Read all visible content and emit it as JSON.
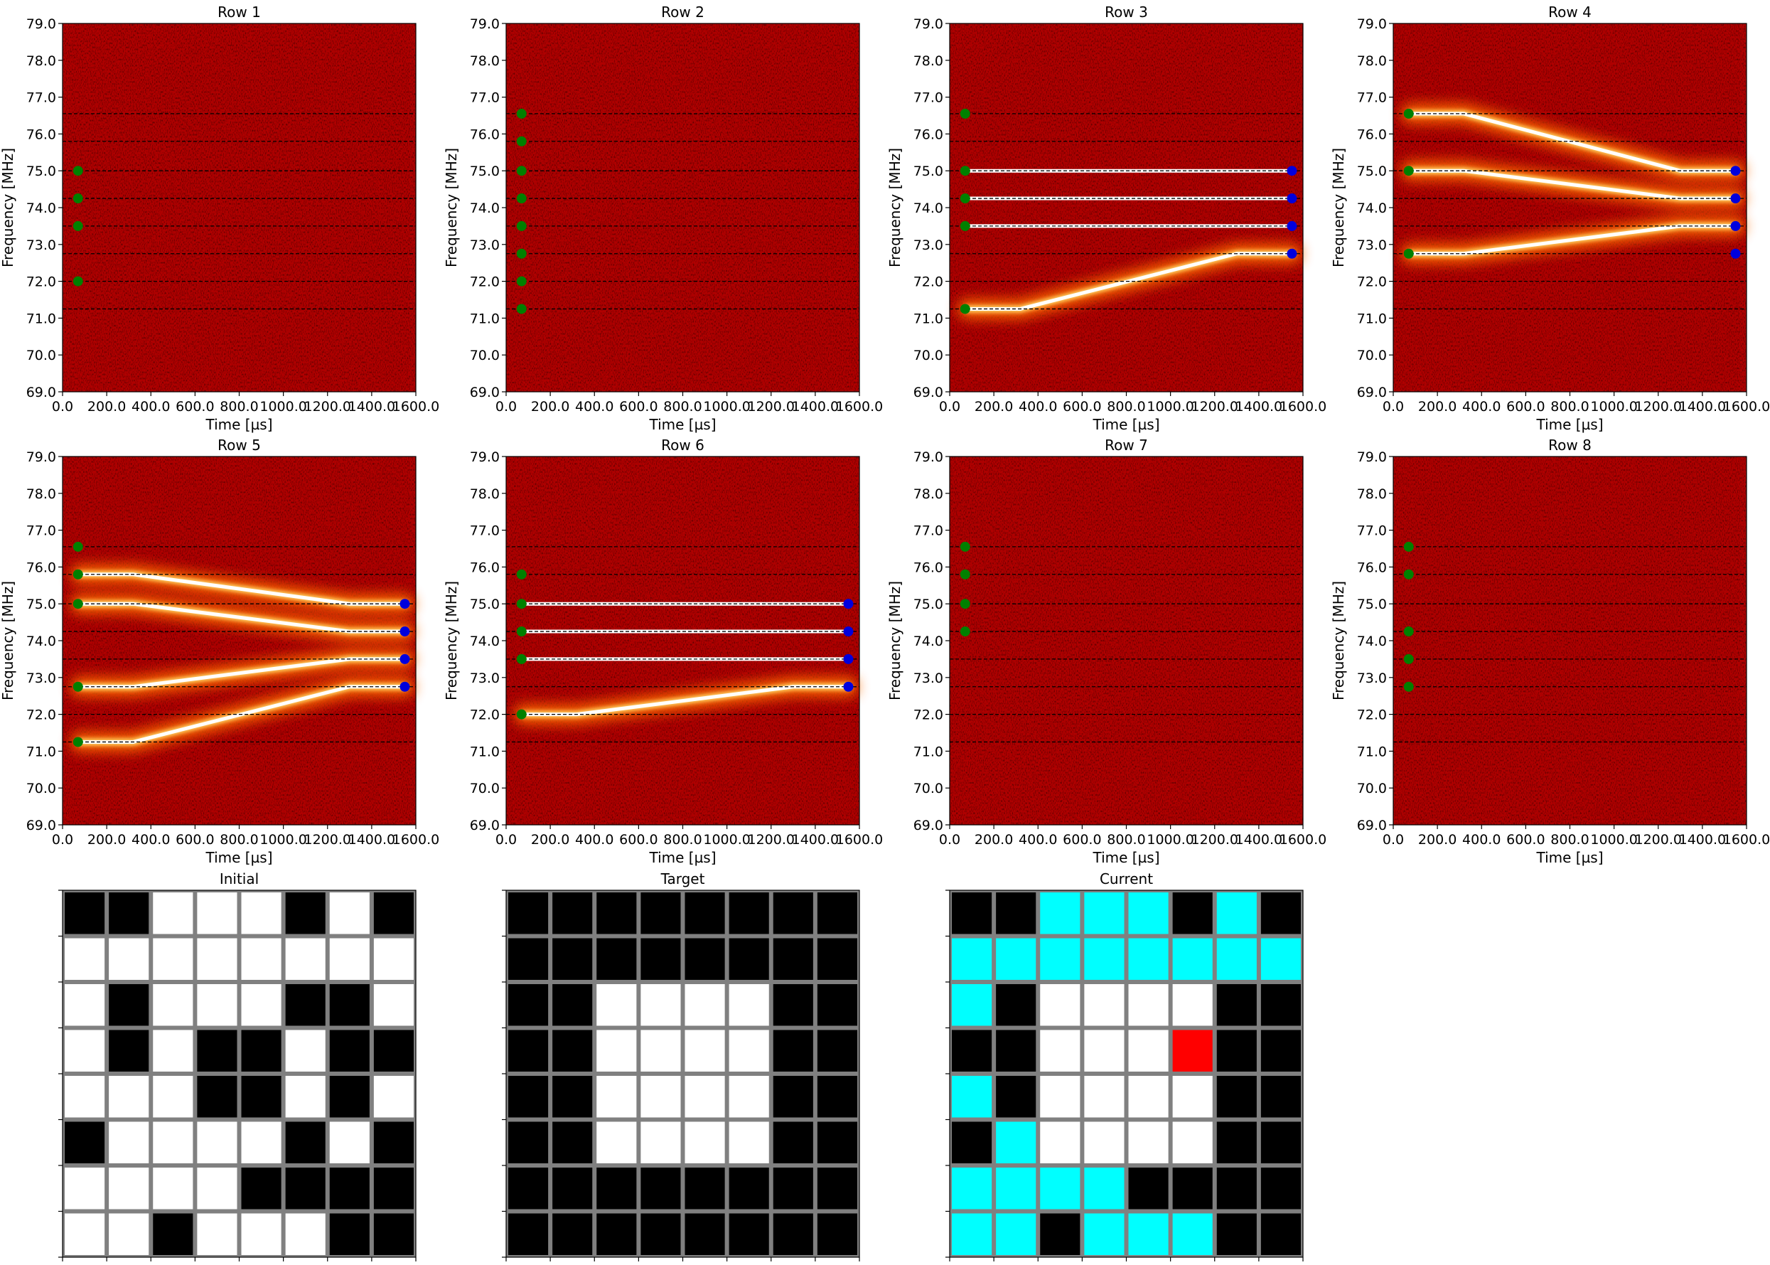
{
  "colors": {
    "background": "#b00000",
    "grid_black": "#000000",
    "grid_white": "#ffffff",
    "grid_cyan": "#00ffff",
    "grid_red": "#ff0000",
    "grid_line": "#808080",
    "start_marker": "#008000",
    "end_marker": "#0000dd"
  },
  "chart_data": [
    {
      "type": "heatmap",
      "title": "Row 1",
      "xlabel": "Time [µs]",
      "ylabel": "Frequency [MHz]",
      "xlim": [
        0,
        1600
      ],
      "ylim": [
        69,
        79
      ],
      "xticks": [
        "0.0",
        "200.0",
        "400.0",
        "600.0",
        "800.0",
        "1000.0",
        "1200.0",
        "1400.0",
        "1600.0"
      ],
      "yticks": [
        "69.0",
        "70.0",
        "71.0",
        "72.0",
        "73.0",
        "74.0",
        "75.0",
        "76.0",
        "77.0",
        "78.0",
        "79.0"
      ],
      "reference_lines": [
        71.25,
        72.0,
        72.75,
        73.5,
        74.25,
        75.0,
        75.8,
        76.55
      ],
      "start_markers": [
        72.0,
        73.5,
        74.25,
        75.0
      ],
      "end_markers": [],
      "tones": []
    },
    {
      "type": "heatmap",
      "title": "Row 2",
      "xlabel": "Time [µs]",
      "ylabel": "Frequency [MHz]",
      "xlim": [
        0,
        1600
      ],
      "ylim": [
        69,
        79
      ],
      "xticks": [
        "0.0",
        "200.0",
        "400.0",
        "600.0",
        "800.0",
        "1000.0",
        "1200.0",
        "1400.0",
        "1600.0"
      ],
      "yticks": [
        "69.0",
        "70.0",
        "71.0",
        "72.0",
        "73.0",
        "74.0",
        "75.0",
        "76.0",
        "77.0",
        "78.0",
        "79.0"
      ],
      "reference_lines": [
        71.25,
        72.0,
        72.75,
        73.5,
        74.25,
        75.0,
        75.8,
        76.55
      ],
      "start_markers": [
        71.25,
        72.0,
        72.75,
        73.5,
        74.25,
        75.0,
        75.8,
        76.55
      ],
      "end_markers": [],
      "tones": []
    },
    {
      "type": "heatmap",
      "title": "Row 3",
      "xlabel": "Time [µs]",
      "ylabel": "Frequency [MHz]",
      "xlim": [
        0,
        1600
      ],
      "ylim": [
        69,
        79
      ],
      "xticks": [
        "0.0",
        "200.0",
        "400.0",
        "600.0",
        "800.0",
        "1000.0",
        "1200.0",
        "1400.0",
        "1600.0"
      ],
      "yticks": [
        "69.0",
        "70.0",
        "71.0",
        "72.0",
        "73.0",
        "74.0",
        "75.0",
        "76.0",
        "77.0",
        "78.0",
        "79.0"
      ],
      "reference_lines": [
        71.25,
        72.0,
        72.75,
        73.5,
        74.25,
        75.0,
        75.8,
        76.55
      ],
      "start_markers": [
        71.25,
        73.5,
        74.25,
        75.0,
        76.55
      ],
      "end_markers": [
        72.75,
        73.5,
        74.25,
        75.0
      ],
      "tones": [
        {
          "from": 75.0,
          "to": 75.0
        },
        {
          "from": 74.25,
          "to": 74.25
        },
        {
          "from": 73.5,
          "to": 73.5
        },
        {
          "from": 71.25,
          "to": 72.75
        }
      ]
    },
    {
      "type": "heatmap",
      "title": "Row 4",
      "xlabel": "Time [µs]",
      "ylabel": "Frequency [MHz]",
      "xlim": [
        0,
        1600
      ],
      "ylim": [
        69,
        79
      ],
      "xticks": [
        "0.0",
        "200.0",
        "400.0",
        "600.0",
        "800.0",
        "1000.0",
        "1200.0",
        "1400.0",
        "1600.0"
      ],
      "yticks": [
        "69.0",
        "70.0",
        "71.0",
        "72.0",
        "73.0",
        "74.0",
        "75.0",
        "76.0",
        "77.0",
        "78.0",
        "79.0"
      ],
      "reference_lines": [
        71.25,
        72.0,
        72.75,
        73.5,
        74.25,
        75.0,
        75.8,
        76.55
      ],
      "start_markers": [
        72.75,
        75.0,
        76.55
      ],
      "end_markers": [
        72.75,
        73.5,
        74.25,
        75.0
      ],
      "tones": [
        {
          "from": 76.55,
          "to": 75.0
        },
        {
          "from": 75.0,
          "to": 74.25
        },
        {
          "from": 72.75,
          "to": 73.5
        }
      ]
    },
    {
      "type": "heatmap",
      "title": "Row 5",
      "xlabel": "Time [µs]",
      "ylabel": "Frequency [MHz]",
      "xlim": [
        0,
        1600
      ],
      "ylim": [
        69,
        79
      ],
      "xticks": [
        "0.0",
        "200.0",
        "400.0",
        "600.0",
        "800.0",
        "1000.0",
        "1200.0",
        "1400.0",
        "1600.0"
      ],
      "yticks": [
        "69.0",
        "70.0",
        "71.0",
        "72.0",
        "73.0",
        "74.0",
        "75.0",
        "76.0",
        "77.0",
        "78.0",
        "79.0"
      ],
      "reference_lines": [
        71.25,
        72.0,
        72.75,
        73.5,
        74.25,
        75.0,
        75.8,
        76.55
      ],
      "start_markers": [
        71.25,
        72.75,
        75.0,
        75.8,
        76.55
      ],
      "end_markers": [
        72.75,
        73.5,
        74.25,
        75.0
      ],
      "tones": [
        {
          "from": 75.8,
          "to": 75.0
        },
        {
          "from": 75.0,
          "to": 74.25
        },
        {
          "from": 72.75,
          "to": 73.5
        },
        {
          "from": 71.25,
          "to": 72.75
        }
      ]
    },
    {
      "type": "heatmap",
      "title": "Row 6",
      "xlabel": "Time [µs]",
      "ylabel": "Frequency [MHz]",
      "xlim": [
        0,
        1600
      ],
      "ylim": [
        69,
        79
      ],
      "xticks": [
        "0.0",
        "200.0",
        "400.0",
        "600.0",
        "800.0",
        "1000.0",
        "1200.0",
        "1400.0",
        "1600.0"
      ],
      "yticks": [
        "69.0",
        "70.0",
        "71.0",
        "72.0",
        "73.0",
        "74.0",
        "75.0",
        "76.0",
        "77.0",
        "78.0",
        "79.0"
      ],
      "reference_lines": [
        71.25,
        72.0,
        72.75,
        73.5,
        74.25,
        75.0,
        75.8,
        76.55
      ],
      "start_markers": [
        72.0,
        73.5,
        74.25,
        75.0,
        75.8
      ],
      "end_markers": [
        72.75,
        73.5,
        74.25,
        75.0
      ],
      "tones": [
        {
          "from": 75.0,
          "to": 75.0
        },
        {
          "from": 74.25,
          "to": 74.25
        },
        {
          "from": 73.5,
          "to": 73.5
        },
        {
          "from": 72.0,
          "to": 72.75
        }
      ]
    },
    {
      "type": "heatmap",
      "title": "Row 7",
      "xlabel": "Time [µs]",
      "ylabel": "Frequency [MHz]",
      "xlim": [
        0,
        1600
      ],
      "ylim": [
        69,
        79
      ],
      "xticks": [
        "0.0",
        "200.0",
        "400.0",
        "600.0",
        "800.0",
        "1000.0",
        "1200.0",
        "1400.0",
        "1600.0"
      ],
      "yticks": [
        "69.0",
        "70.0",
        "71.0",
        "72.0",
        "73.0",
        "74.0",
        "75.0",
        "76.0",
        "77.0",
        "78.0",
        "79.0"
      ],
      "reference_lines": [
        71.25,
        72.0,
        72.75,
        73.5,
        74.25,
        75.0,
        75.8,
        76.55
      ],
      "start_markers": [
        74.25,
        75.0,
        75.8,
        76.55
      ],
      "end_markers": [],
      "tones": []
    },
    {
      "type": "heatmap",
      "title": "Row 8",
      "xlabel": "Time [µs]",
      "ylabel": "Frequency [MHz]",
      "xlim": [
        0,
        1600
      ],
      "ylim": [
        69,
        79
      ],
      "xticks": [
        "0.0",
        "200.0",
        "400.0",
        "600.0",
        "800.0",
        "1000.0",
        "1200.0",
        "1400.0",
        "1600.0"
      ],
      "yticks": [
        "69.0",
        "70.0",
        "71.0",
        "72.0",
        "73.0",
        "74.0",
        "75.0",
        "76.0",
        "77.0",
        "78.0",
        "79.0"
      ],
      "reference_lines": [
        71.25,
        72.0,
        72.75,
        73.5,
        74.25,
        75.0,
        75.8,
        76.55
      ],
      "start_markers": [
        72.75,
        73.5,
        74.25,
        75.8,
        76.55
      ],
      "end_markers": [],
      "tones": []
    },
    {
      "type": "heatmap",
      "title": "Initial",
      "cell_colors": [
        "black",
        "white"
      ],
      "rows": [
        [
          1,
          1,
          0,
          0,
          0,
          1,
          0,
          1
        ],
        [
          0,
          0,
          0,
          0,
          0,
          0,
          0,
          0
        ],
        [
          0,
          1,
          0,
          0,
          0,
          1,
          1,
          0
        ],
        [
          0,
          1,
          0,
          1,
          1,
          0,
          1,
          1
        ],
        [
          0,
          0,
          0,
          1,
          1,
          0,
          1,
          0
        ],
        [
          1,
          0,
          0,
          0,
          0,
          1,
          0,
          1
        ],
        [
          0,
          0,
          0,
          0,
          1,
          1,
          1,
          1
        ],
        [
          0,
          0,
          1,
          0,
          0,
          0,
          1,
          1
        ]
      ]
    },
    {
      "type": "heatmap",
      "title": "Target",
      "cell_colors": [
        "black",
        "white"
      ],
      "rows": [
        [
          1,
          1,
          1,
          1,
          1,
          1,
          1,
          1
        ],
        [
          1,
          1,
          1,
          1,
          1,
          1,
          1,
          1
        ],
        [
          1,
          1,
          0,
          0,
          0,
          0,
          1,
          1
        ],
        [
          1,
          1,
          0,
          0,
          0,
          0,
          1,
          1
        ],
        [
          1,
          1,
          0,
          0,
          0,
          0,
          1,
          1
        ],
        [
          1,
          1,
          0,
          0,
          0,
          0,
          1,
          1
        ],
        [
          1,
          1,
          1,
          1,
          1,
          1,
          1,
          1
        ],
        [
          1,
          1,
          1,
          1,
          1,
          1,
          1,
          1
        ]
      ]
    },
    {
      "type": "heatmap",
      "title": "Current",
      "cell_colors": [
        "black",
        "white",
        "cyan",
        "red"
      ],
      "rows": [
        [
          "K",
          "K",
          "C",
          "C",
          "C",
          "K",
          "C",
          "K"
        ],
        [
          "C",
          "C",
          "C",
          "C",
          "C",
          "C",
          "C",
          "C"
        ],
        [
          "C",
          "K",
          "W",
          "W",
          "W",
          "W",
          "K",
          "K"
        ],
        [
          "K",
          "K",
          "W",
          "W",
          "W",
          "R",
          "K",
          "K"
        ],
        [
          "C",
          "K",
          "W",
          "W",
          "W",
          "W",
          "K",
          "K"
        ],
        [
          "K",
          "C",
          "W",
          "W",
          "W",
          "W",
          "K",
          "K"
        ],
        [
          "C",
          "C",
          "C",
          "C",
          "K",
          "K",
          "K",
          "K"
        ],
        [
          "C",
          "C",
          "K",
          "C",
          "C",
          "C",
          "K",
          "K"
        ]
      ]
    }
  ]
}
